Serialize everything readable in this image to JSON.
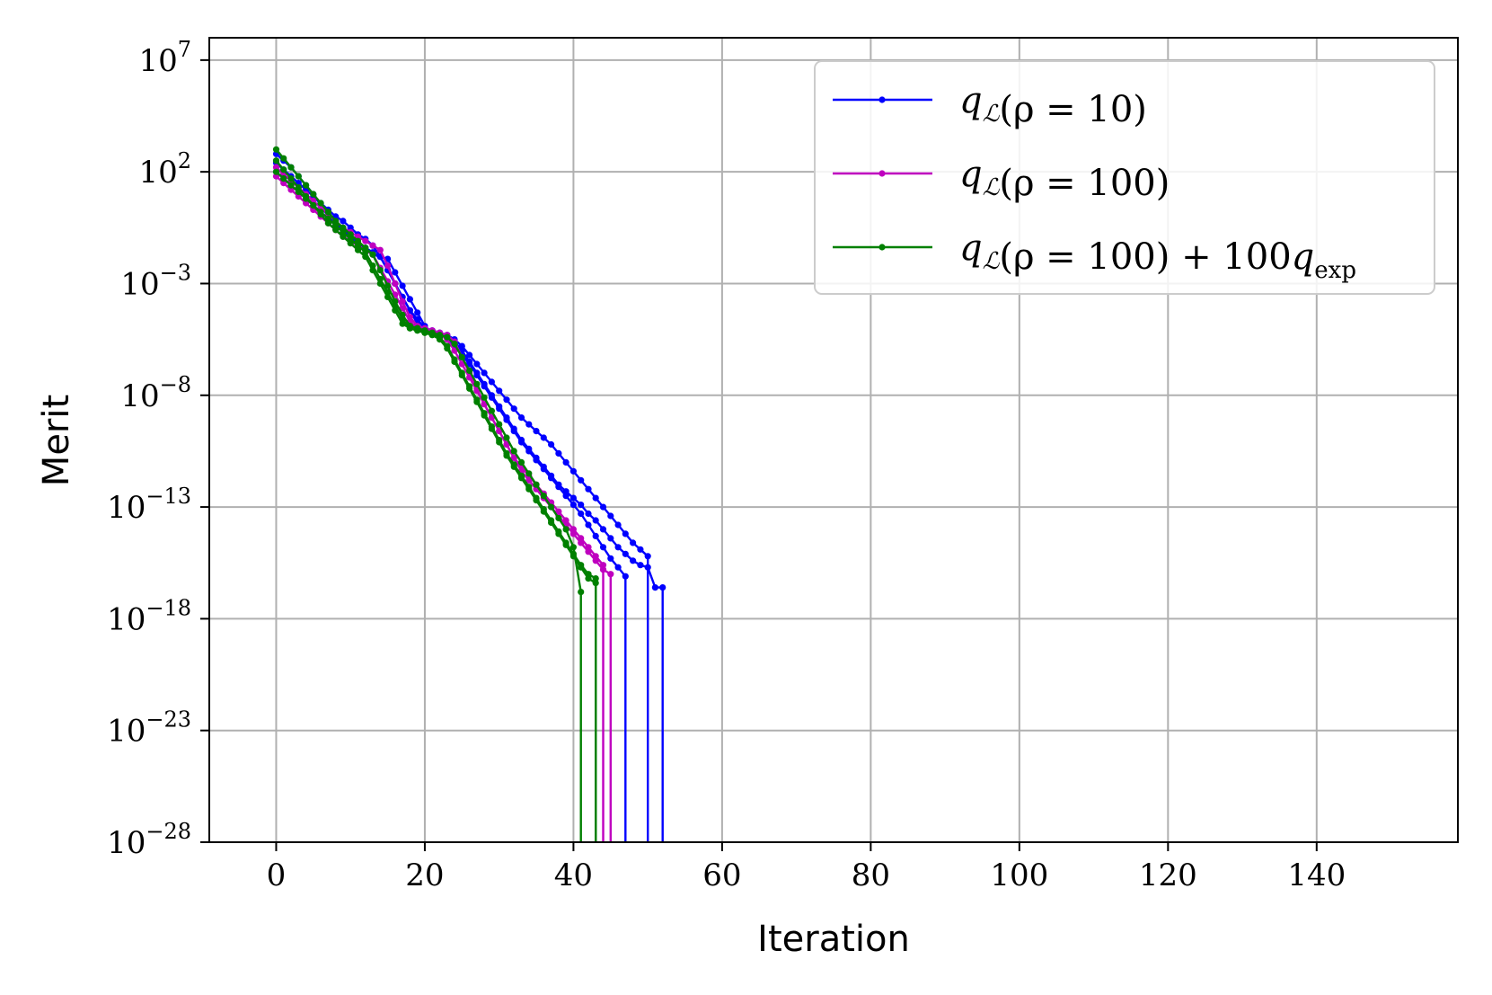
{
  "chart_data": {
    "type": "line",
    "xlabel": "Iteration",
    "ylabel": "Merit",
    "xlim": [
      -9,
      159
    ],
    "ylim_log10": [
      -28,
      8
    ],
    "y_scale": "log",
    "grid": true,
    "legend_placement": "top-right",
    "x_ticks": [
      {
        "v": 0,
        "label": "0"
      },
      {
        "v": 20,
        "label": "20"
      },
      {
        "v": 40,
        "label": "40"
      },
      {
        "v": 60,
        "label": "60"
      },
      {
        "v": 80,
        "label": "80"
      },
      {
        "v": 100,
        "label": "100"
      },
      {
        "v": 120,
        "label": "120"
      },
      {
        "v": 140,
        "label": "140"
      }
    ],
    "y_ticks": [
      {
        "v": 7,
        "base": "10",
        "exp": "7"
      },
      {
        "v": 2,
        "base": "10",
        "exp": "2"
      },
      {
        "v": -3,
        "base": "10",
        "exp": "−3"
      },
      {
        "v": -8,
        "base": "10",
        "exp": "−8"
      },
      {
        "v": -13,
        "base": "10",
        "exp": "−13"
      },
      {
        "v": -18,
        "base": "10",
        "exp": "−18"
      },
      {
        "v": -23,
        "base": "10",
        "exp": "−23"
      },
      {
        "v": -28,
        "base": "10",
        "exp": "−28"
      }
    ],
    "legend": [
      {
        "label": "q_L(ρ = 10)",
        "color": "#0000ff"
      },
      {
        "label": "q_L(ρ = 100)",
        "color": "#bf00bf"
      },
      {
        "label": "q_L(ρ = 100) + 100q_exp",
        "color": "#008000"
      }
    ],
    "series": [
      {
        "group": 0,
        "color": "#0000ff",
        "log10_y": [
          2.4,
          2.1,
          1.8,
          1.5,
          1.2,
          0.9,
          0.6,
          0.3,
          0.0,
          -0.2,
          -0.5,
          -0.8,
          -1.0,
          -1.3,
          -1.8,
          -2.4,
          -3.0,
          -3.6,
          -4.2,
          -4.8,
          -5.1,
          -5.2,
          -5.3,
          -5.4,
          -5.6,
          -6.0,
          -6.5,
          -7.0,
          -7.5,
          -8.0,
          -8.5,
          -9.0,
          -9.5,
          -10.0,
          -10.4,
          -10.8,
          -11.2,
          -11.6,
          -12.0,
          -12.3,
          -12.6,
          -12.9,
          -13.3,
          -13.6,
          -14.0,
          -14.4,
          -14.8,
          -15.1,
          -15.4,
          -15.6,
          -15.7,
          -16.6,
          -16.6
        ]
      },
      {
        "group": 0,
        "color": "#0000ff",
        "log10_y": [
          2.8,
          2.5,
          2.2,
          1.8,
          1.4,
          1.0,
          0.5,
          0.0,
          -0.3,
          -0.6,
          -0.9,
          -1.2,
          -1.5,
          -1.7,
          -1.8,
          -1.9,
          -2.5,
          -3.1,
          -3.7,
          -4.3,
          -4.9,
          -5.2,
          -5.3,
          -5.4,
          -5.8,
          -6.2,
          -6.6,
          -7.1,
          -7.6,
          -8.1,
          -8.6,
          -9.1,
          -9.6,
          -10.1,
          -10.5,
          -10.9,
          -11.3,
          -11.7,
          -12.1,
          -12.5,
          -12.9,
          -13.3,
          -13.8,
          -14.3,
          -14.8,
          -15.3,
          -15.7,
          -16.1
        ]
      },
      {
        "group": 0,
        "color": "#0000ff",
        "log10_y": [
          2.0,
          1.7,
          1.4,
          1.1,
          0.8,
          0.5,
          0.2,
          -0.1,
          -0.4,
          -0.7,
          -1.0,
          -1.2,
          -1.4,
          -1.6,
          -1.8,
          -2.4,
          -3.0,
          -3.6,
          -4.2,
          -4.6,
          -5.0,
          -5.1,
          -5.2,
          -5.3,
          -5.5,
          -5.8,
          -6.2,
          -6.6,
          -7.0,
          -7.4,
          -7.8,
          -8.2,
          -8.6,
          -9.0,
          -9.3,
          -9.6,
          -9.9,
          -10.2,
          -10.6,
          -11.0,
          -11.4,
          -11.8,
          -12.2,
          -12.6,
          -13.0,
          -13.4,
          -13.8,
          -14.2,
          -14.6,
          -14.9,
          -15.2
        ]
      },
      {
        "group": 1,
        "color": "#bf00bf",
        "log10_y": [
          2.2,
          1.9,
          1.6,
          1.3,
          1.0,
          0.7,
          0.4,
          0.1,
          -0.2,
          -0.5,
          -0.7,
          -0.9,
          -1.1,
          -1.3,
          -1.5,
          -2.2,
          -3.0,
          -3.8,
          -4.5,
          -4.9,
          -5.0,
          -5.1,
          -5.2,
          -5.3,
          -5.6,
          -6.3,
          -7.0,
          -7.7,
          -8.4,
          -9.0,
          -9.6,
          -10.2,
          -10.8,
          -11.4,
          -11.8,
          -12.2,
          -12.6,
          -13.0,
          -13.4,
          -13.8,
          -14.2,
          -14.6,
          -15.0,
          -15.4,
          -15.8,
          -16.0
        ]
      },
      {
        "group": 1,
        "color": "#bf00bf",
        "log10_y": [
          1.8,
          1.5,
          1.2,
          0.9,
          0.6,
          0.3,
          0.0,
          -0.3,
          -0.6,
          -0.9,
          -1.1,
          -1.3,
          -1.5,
          -1.7,
          -2.3,
          -2.9,
          -3.5,
          -4.1,
          -4.7,
          -5.0,
          -5.1,
          -5.2,
          -5.3,
          -5.5,
          -6.0,
          -6.6,
          -7.2,
          -7.8,
          -8.4,
          -9.0,
          -9.6,
          -10.2,
          -10.8,
          -11.2,
          -11.6,
          -12.0,
          -12.4,
          -12.8,
          -13.2,
          -13.6,
          -14.0,
          -14.4,
          -14.8,
          -15.2,
          -15.6
        ]
      },
      {
        "group": 2,
        "color": "#008000",
        "log10_y": [
          3.0,
          2.6,
          2.2,
          1.8,
          1.4,
          1.0,
          0.6,
          0.2,
          -0.2,
          -0.5,
          -0.8,
          -1.1,
          -1.4,
          -1.7,
          -2.4,
          -3.1,
          -3.8,
          -4.4,
          -4.9,
          -5.0,
          -5.1,
          -5.2,
          -5.3,
          -5.4,
          -5.7,
          -6.3,
          -6.9,
          -7.5,
          -8.1,
          -8.7,
          -9.3,
          -9.9,
          -10.5,
          -11.0,
          -11.5,
          -12.0,
          -12.5,
          -13.0,
          -13.5,
          -14.0,
          -14.8,
          -16.8
        ]
      },
      {
        "group": 2,
        "color": "#008000",
        "log10_y": [
          2.5,
          2.1,
          1.7,
          1.3,
          0.9,
          0.5,
          0.1,
          -0.3,
          -0.6,
          -0.9,
          -1.2,
          -1.5,
          -1.8,
          -2.4,
          -3.0,
          -3.6,
          -4.2,
          -4.8,
          -5.0,
          -5.1,
          -5.2,
          -5.3,
          -5.5,
          -5.9,
          -6.5,
          -7.1,
          -7.7,
          -8.3,
          -8.9,
          -9.5,
          -10.1,
          -10.7,
          -11.2,
          -11.7,
          -12.2,
          -12.7,
          -13.2,
          -13.7,
          -14.2,
          -14.7,
          -15.2,
          -15.7,
          -16.2,
          -16.4
        ]
      },
      {
        "group": 2,
        "color": "#008000",
        "log10_y": [
          2.0,
          1.7,
          1.4,
          1.1,
          0.8,
          0.5,
          0.2,
          -0.1,
          -0.4,
          -0.7,
          -1.0,
          -1.3,
          -1.6,
          -2.2,
          -2.8,
          -3.4,
          -4.0,
          -4.6,
          -5.0,
          -5.1,
          -5.2,
          -5.3,
          -5.4,
          -5.8,
          -6.4,
          -7.0,
          -7.6,
          -8.2,
          -8.8,
          -9.4,
          -10.0,
          -10.6,
          -11.1,
          -11.6,
          -12.1,
          -12.6,
          -13.1,
          -13.6,
          -14.1,
          -14.6,
          -15.1,
          -15.6,
          -16.0,
          -16.2
        ]
      }
    ]
  }
}
